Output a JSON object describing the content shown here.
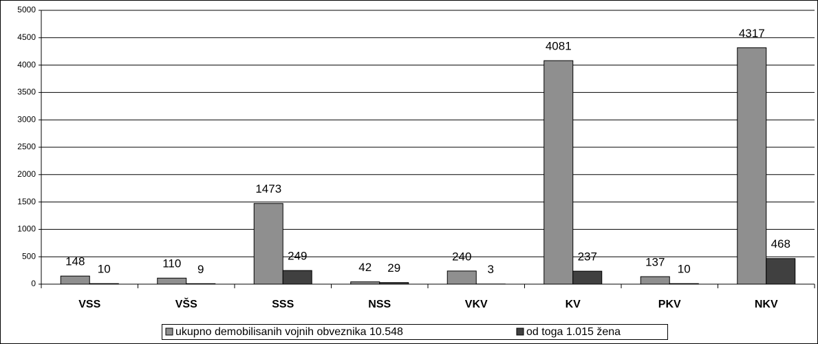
{
  "chart_data": {
    "type": "bar",
    "categories": [
      "VSS",
      "VŠS",
      "SSS",
      "NSS",
      "VKV",
      "KV",
      "PKV",
      "NKV"
    ],
    "series": [
      {
        "name": "ukupno demobilisanih vojnih obveznika 10.548",
        "color": "#8f8f8f",
        "values": [
          148,
          110,
          1473,
          42,
          240,
          4081,
          137,
          4317
        ]
      },
      {
        "name": "od toga 1.015 žena",
        "color": "#404040",
        "values": [
          10,
          9,
          249,
          29,
          3,
          237,
          10,
          468
        ]
      }
    ],
    "ylim": [
      0,
      5000
    ],
    "yticks": [
      0,
      500,
      1000,
      1500,
      2000,
      2500,
      3000,
      3500,
      4000,
      4500,
      5000
    ],
    "grid": true,
    "legend": "bottom"
  }
}
